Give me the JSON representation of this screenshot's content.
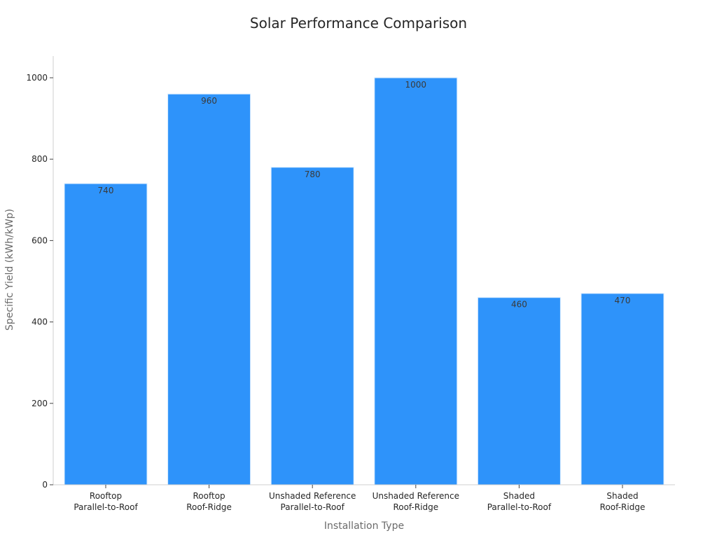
{
  "chart_data": {
    "type": "bar",
    "title": "Solar Performance Comparison",
    "xlabel": "Installation Type",
    "ylabel": "Specific Yield (kWh/kWp)",
    "categories": [
      [
        "Rooftop",
        "Parallel-to-Roof"
      ],
      [
        "Rooftop",
        "Roof-Ridge"
      ],
      [
        "Unshaded Reference",
        "Parallel-to-Roof"
      ],
      [
        "Unshaded Reference",
        "Roof-Ridge"
      ],
      [
        "Shaded",
        "Parallel-to-Roof"
      ],
      [
        "Shaded",
        "Roof-Ridge"
      ]
    ],
    "values": [
      740,
      960,
      780,
      1000,
      460,
      470
    ],
    "data_labels": [
      "740",
      "960",
      "780",
      "1000",
      "460",
      "470"
    ],
    "ylim": [
      0,
      1050
    ],
    "yticks": [
      0,
      200,
      400,
      600,
      800,
      1000
    ],
    "grid": false,
    "legend": "none",
    "bar_color": "#2e93fa"
  }
}
